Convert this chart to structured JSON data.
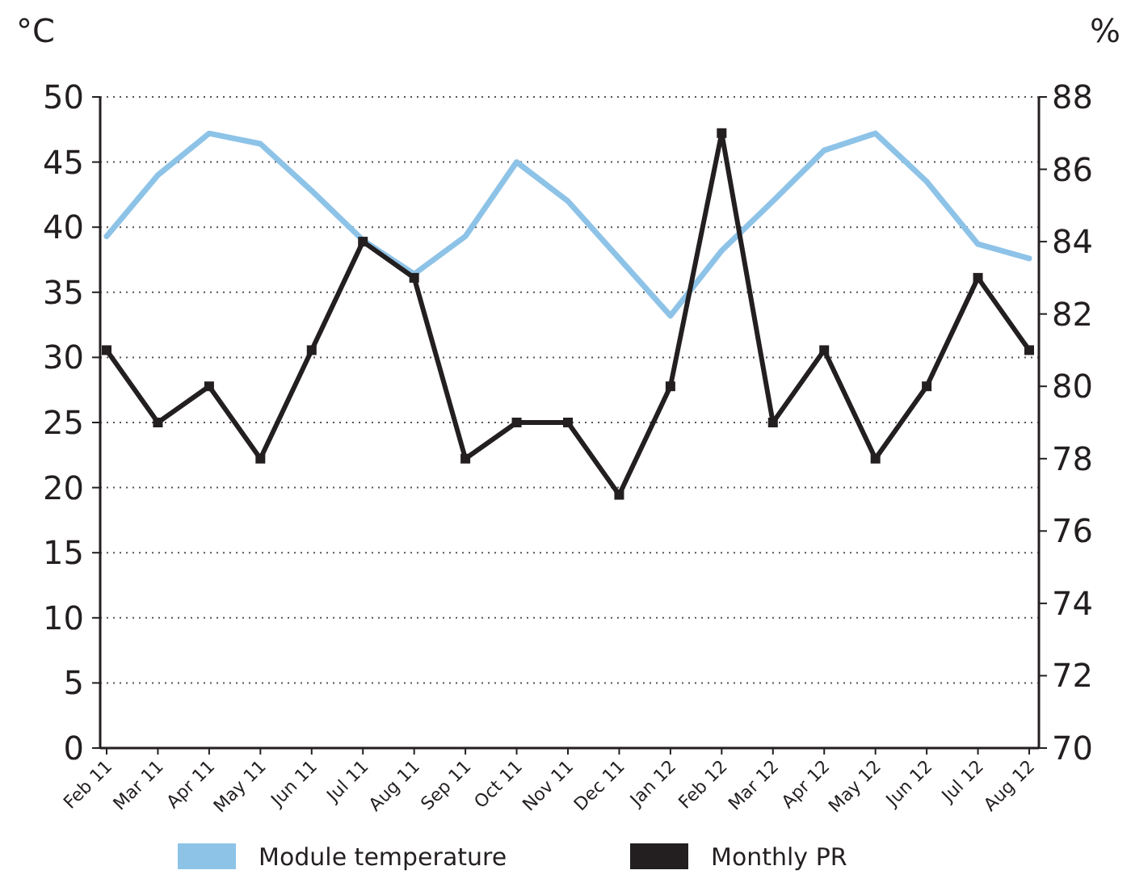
{
  "chart_data": {
    "type": "line",
    "ylabel": "°C",
    "y2label": "%",
    "categories": [
      "Feb 11",
      "Mar 11",
      "Apr 11",
      "May 11",
      "Jun 11",
      "Jul 11",
      "Aug 11",
      "Sep 11",
      "Oct 11",
      "Nov 11",
      "Dec 11",
      "Jan 12",
      "Feb 12",
      "Mar 12",
      "Apr 12",
      "May 12",
      "Jun 12",
      "Jul 12",
      "Aug 12"
    ],
    "series": [
      {
        "name": "Module temperature",
        "color": "#8ec3e8",
        "marker": "none",
        "values": [
          39.3,
          44,
          47.2,
          46.4,
          42.8,
          39,
          36.4,
          39.3,
          45,
          42,
          37.6,
          33.2,
          38.2,
          42,
          45.9,
          47.2,
          43.5,
          38.7,
          37.6
        ]
      },
      {
        "name": "Monthly PR",
        "color": "#231f20",
        "marker": "square",
        "axis": "y2",
        "values": [
          81,
          79,
          80,
          78,
          81,
          84,
          83,
          78,
          79,
          79,
          77,
          80,
          87,
          79,
          81,
          78,
          80,
          83,
          81
        ]
      }
    ],
    "ylim": [
      0,
      50
    ],
    "yticks": [
      0,
      5,
      10,
      15,
      20,
      25,
      30,
      35,
      40,
      45,
      50
    ],
    "y2lim": [
      70,
      88
    ],
    "y2ticks": [
      70,
      72,
      74,
      76,
      78,
      80,
      82,
      84,
      86,
      88
    ],
    "grid": "y",
    "legend": "bottom",
    "line_style": "solid"
  }
}
